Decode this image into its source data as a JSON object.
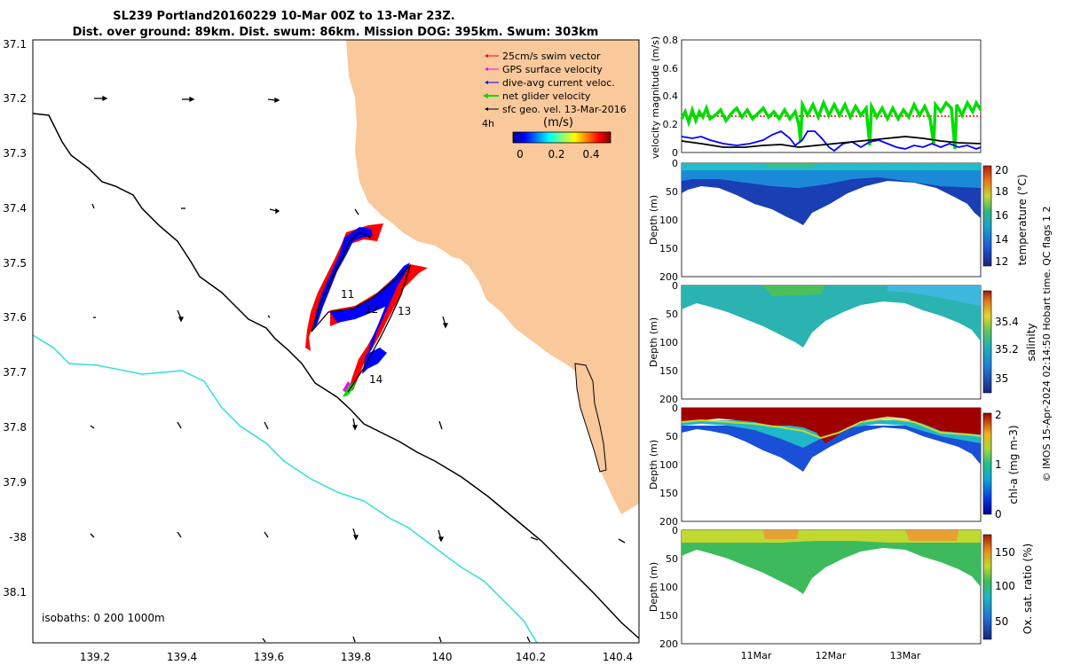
{
  "title": {
    "line1": "SL239 Portland20160229 10-Mar 00Z to 13-Mar 23Z.",
    "line2": "Dist. over ground: 89km. Dist. swum: 86km. Mission DOG: 395km. Swum: 303km"
  },
  "map": {
    "lat_ticks": [
      "37.1",
      "37.2",
      "37.3",
      "37.4",
      "37.5",
      "37.6",
      "37.7",
      "37.8",
      "37.9",
      "-38",
      "38.1"
    ],
    "lon_ticks": [
      "139.2",
      "139.4",
      "139.6",
      "139.8",
      "140",
      "140.2",
      "140.4"
    ],
    "legend": [
      {
        "label": "25cm/s swim vector",
        "color": "#ff0000"
      },
      {
        "label": "GPS surface velocity",
        "color": "#ff00ff"
      },
      {
        "label": "dive-avg current veloc.",
        "color": "#0000ff"
      },
      {
        "label": "net glider velocity",
        "color": "#00dd00"
      },
      {
        "label": "sfc geo. vel. 13-Mar-2016",
        "color": "#000000"
      }
    ],
    "interval_label": "4h",
    "colorbar_unit": "(m/s)",
    "colorbar_ticks": [
      "0",
      "0.2",
      "0.4"
    ],
    "day_labels": [
      "11",
      "12",
      "13",
      "14"
    ],
    "isobaths_label": "isobaths: 0   200  1000m",
    "colors": {
      "land": "#f9c89b",
      "isobath_200": "#000000",
      "isobath_1000": "#33dddd"
    }
  },
  "chart_data": [
    {
      "type": "line",
      "ylabel": "velocity magnitude (m/s)",
      "ylim": [
        0,
        0.8
      ],
      "ytick_labels": [
        "0",
        "0.2",
        "0.4",
        "0.6",
        "0.8"
      ],
      "series": [
        {
          "color": "#00dd00",
          "style": "thick"
        },
        {
          "color": "#ff0000",
          "style": "dotted"
        },
        {
          "color": "#0000ff",
          "style": "solid"
        },
        {
          "color": "#000000",
          "style": "solid"
        }
      ]
    },
    {
      "type": "heatmap",
      "ylabel": "Depth (m)",
      "colorbar_label": "temperature (°C)",
      "ytick_labels": [
        "0",
        "50",
        "100",
        "150",
        "200"
      ],
      "colorbar_ticks": [
        "20",
        "18",
        "16",
        "14",
        "12"
      ]
    },
    {
      "type": "heatmap",
      "ylabel": "Depth (m)",
      "colorbar_label": "salinity",
      "ytick_labels": [
        "0",
        "50",
        "100",
        "150",
        "200"
      ],
      "colorbar_ticks": [
        "35.4",
        "35.2",
        "35"
      ]
    },
    {
      "type": "heatmap",
      "ylabel": "Depth (m)",
      "colorbar_label": "chl-a (mg m-3)",
      "ytick_labels": [
        "0",
        "50",
        "100",
        "150",
        "200"
      ],
      "colorbar_ticks": [
        "2",
        "1",
        "0"
      ]
    },
    {
      "type": "heatmap",
      "ylabel": "Depth (m)",
      "colorbar_label": "Ox. sat. ratio (%)",
      "ytick_labels": [
        "0",
        "50",
        "100",
        "150",
        "200"
      ],
      "colorbar_ticks": [
        "150",
        "100",
        "50"
      ],
      "xtick_labels": [
        "11Mar",
        "12Mar",
        "13Mar"
      ]
    }
  ],
  "footer": "© IMOS 15-Apr-2024 02:14:50 Hobart time. QC flags 1  2"
}
